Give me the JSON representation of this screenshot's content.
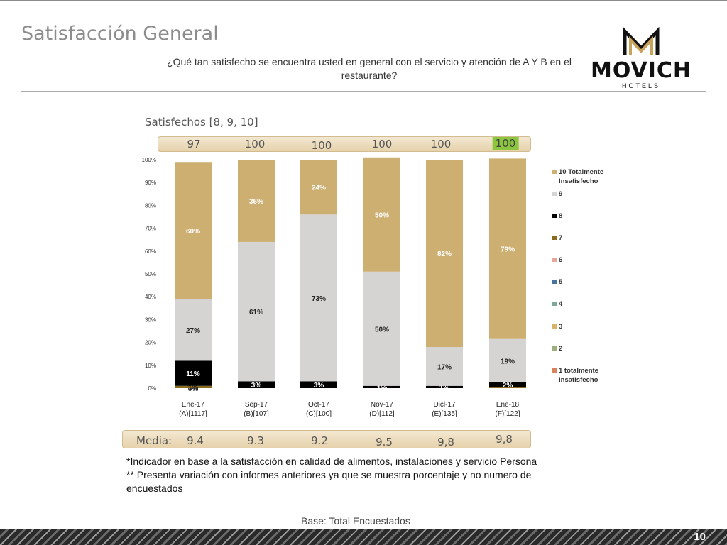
{
  "title": "Satisfacción General",
  "question": "¿Qué tan satisfecho se encuentra usted en general con el servicio y atención de A Y B en el restaurante?",
  "logo": {
    "word": "MOVICH",
    "sub": "HOTELS",
    "icon": "movich-monogram-icon",
    "color": "#111111",
    "accent": "#c9a35a"
  },
  "satisfied_label": "Satisfechos [8, 9, 10]",
  "satisfied_values": [
    "97",
    "100",
    "100",
    "100",
    "100",
    "100"
  ],
  "satisfied_highlight_index": 5,
  "media_label": "Media:",
  "media_values": [
    "9.4",
    "9.3",
    "9.2",
    "9.5",
    "9,8",
    "9,8"
  ],
  "notes": [
    "*Indicador en base a la satisfacción en calidad de alimentos, instalaciones y servicio Persona",
    "** Presenta variación con informes anteriores ya que se muestra porcentaje y no numero de encuestados"
  ],
  "base": "Base: Total Encuestados",
  "page_number": "10",
  "chart_data": {
    "type": "bar",
    "stacked": true,
    "categories": [
      "Ene-17\n(A)[1117]",
      "Sep-17\n(B)[107]",
      "Oct-17\n(C)[100]",
      "Nov-17\n(D)[112]",
      "Dicl-17\n(E)[135]",
      "Ene-18\n(F)[122]"
    ],
    "yticks": [
      "0%",
      "10%",
      "20%",
      "30%",
      "40%",
      "50%",
      "60%",
      "70%",
      "80%",
      "90%",
      "100%"
    ],
    "ylim": [
      0,
      100
    ],
    "legend_position": "right",
    "series": [
      {
        "name": "1 totalmente Insatisfecho",
        "color": "#d9825b",
        "values": [
          0,
          0,
          0,
          0,
          0,
          0
        ],
        "labels": [
          "0%",
          "",
          "",
          "",
          "",
          ""
        ]
      },
      {
        "name": "2",
        "color": "#9fae7d",
        "values": [
          0,
          0,
          0,
          0,
          0,
          0
        ],
        "labels": [
          "",
          "",
          "",
          "",
          "",
          ""
        ]
      },
      {
        "name": "3",
        "color": "#d8b46a",
        "values": [
          0,
          0,
          0,
          0,
          0,
          0
        ],
        "labels": [
          "",
          "",
          "",
          "",
          "",
          ""
        ]
      },
      {
        "name": "4",
        "color": "#7ea89a",
        "values": [
          0,
          0,
          0,
          0,
          0,
          0
        ],
        "labels": [
          "",
          "",
          "",
          "",
          "",
          ""
        ]
      },
      {
        "name": "5",
        "color": "#4a73a0",
        "values": [
          0,
          0,
          0,
          0,
          0,
          0
        ],
        "labels": [
          "",
          "",
          "",
          "",
          "",
          ""
        ]
      },
      {
        "name": "6",
        "color": "#e4a99a",
        "values": [
          0,
          0,
          0,
          0,
          0,
          0
        ],
        "labels": [
          "",
          "",
          "",
          "",
          "",
          ""
        ]
      },
      {
        "name": "7",
        "color": "#8a6a1c",
        "values": [
          1,
          0,
          0,
          0,
          0,
          0.5
        ],
        "labels": [
          "1%",
          "",
          "",
          "",
          "",
          ""
        ]
      },
      {
        "name": "8",
        "color": "#000000",
        "values": [
          11,
          3,
          3,
          1,
          1,
          2
        ],
        "labels": [
          "11%",
          "3%",
          "3%",
          "1%",
          "1%",
          "2%"
        ]
      },
      {
        "name": "9",
        "color": "#d6d3d3",
        "values": [
          27,
          61,
          73,
          50,
          17,
          19
        ],
        "labels": [
          "27%",
          "61%",
          "73%",
          "50%",
          "17%",
          "19%"
        ]
      },
      {
        "name": "10 Totalmente Insatisfecho",
        "color": "#cdaf72",
        "values": [
          60,
          36,
          24,
          50,
          82,
          79
        ],
        "labels": [
          "60%",
          "36%",
          "24%",
          "50%",
          "82%",
          "79%"
        ]
      }
    ]
  }
}
